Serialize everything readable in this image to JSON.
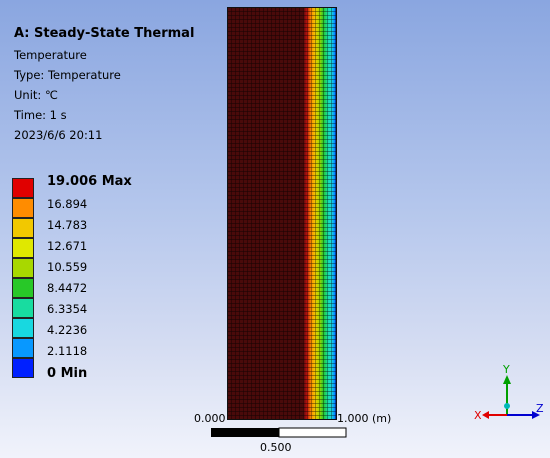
{
  "info": {
    "title": "A: Steady-State Thermal",
    "lines": [
      "Temperature",
      "Type: Temperature",
      "Unit: ℃",
      "Time: 1 s",
      "2023/6/6 20:11"
    ]
  },
  "legend": {
    "entries": [
      {
        "label": "19.006 Max",
        "color": "#e00000",
        "bold": true
      },
      {
        "label": "16.894",
        "color": "#ff8c00",
        "bold": false
      },
      {
        "label": "14.783",
        "color": "#f2c800",
        "bold": false
      },
      {
        "label": "12.671",
        "color": "#e0e800",
        "bold": false
      },
      {
        "label": "10.559",
        "color": "#a8d800",
        "bold": false
      },
      {
        "label": "8.4472",
        "color": "#28c828",
        "bold": false
      },
      {
        "label": "6.3354",
        "color": "#18dca0",
        "bold": false
      },
      {
        "label": "4.2236",
        "color": "#18d8e0",
        "bold": false
      },
      {
        "label": "2.1118",
        "color": "#0898ff",
        "bold": false
      },
      {
        "label": "0 Min",
        "color": "#0020ff",
        "bold": true
      }
    ]
  },
  "plot": {
    "base_color": "#4a0a0a",
    "mesh_color": "#000000"
  },
  "scale": {
    "left_label": "0.000",
    "right_label": "1.000 (m)",
    "mid_label": "0.500"
  },
  "axes": {
    "x_label": "X",
    "y_label": "Y",
    "z_label": "Z",
    "x_color": "#e00000",
    "y_color": "#00a000",
    "z_color": "#0000d0"
  }
}
